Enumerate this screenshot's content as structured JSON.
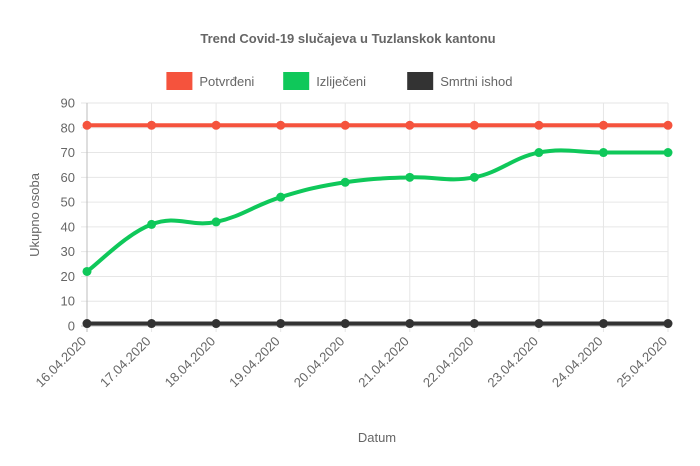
{
  "chart_data": {
    "type": "line",
    "title": "Trend Covid-19 slučajeva u Tuzlanskok kantonu",
    "xlabel": "Datum",
    "ylabel": "Ukupno osoba",
    "categories": [
      "16.04.2020",
      "17.04.2020",
      "18.04.2020",
      "19.04.2020",
      "20.04.2020",
      "21.04.2020",
      "22.04.2020",
      "23.04.2020",
      "24.04.2020",
      "25.04.2020"
    ],
    "ylim": [
      0,
      90
    ],
    "yticks": [
      0,
      10,
      20,
      30,
      40,
      50,
      60,
      70,
      80,
      90
    ],
    "grid": true,
    "legend_position": "top",
    "series": [
      {
        "name": "Potvrđeni",
        "color": "#f5533d",
        "values": [
          81,
          81,
          81,
          81,
          81,
          81,
          81,
          81,
          81,
          81
        ]
      },
      {
        "name": "Izliječeni",
        "color": "#0fc85a",
        "values": [
          22,
          41,
          42,
          52,
          58,
          60,
          60,
          70,
          70,
          70
        ]
      },
      {
        "name": "Smrtni ishod",
        "color": "#333333",
        "values": [
          1,
          1,
          1,
          1,
          1,
          1,
          1,
          1,
          1,
          1
        ]
      }
    ]
  }
}
